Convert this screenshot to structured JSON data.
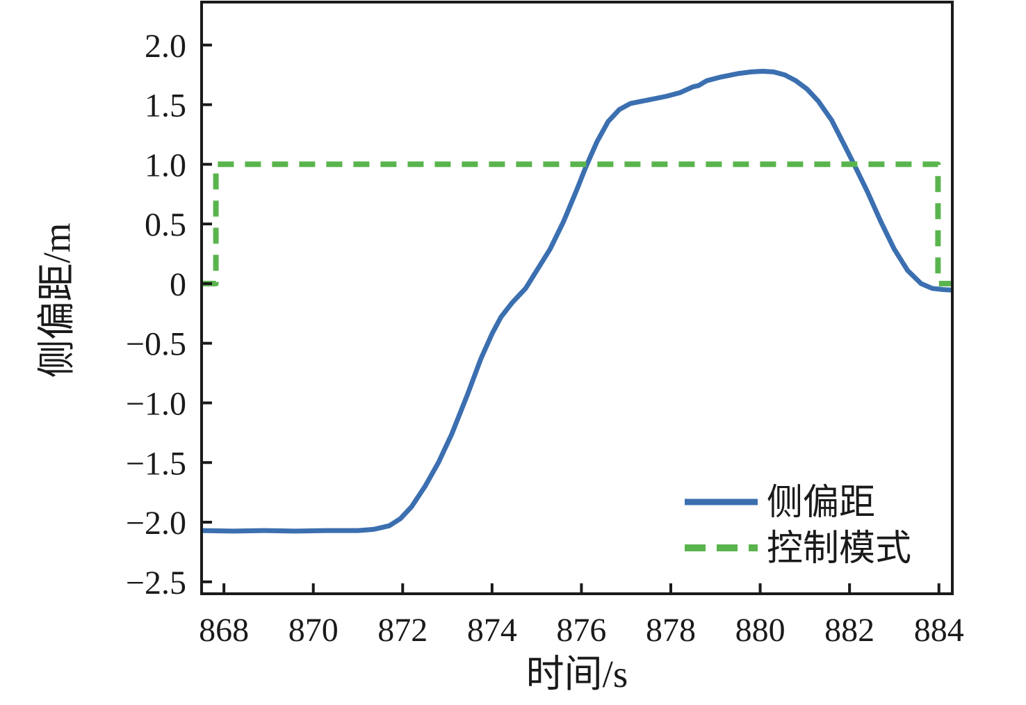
{
  "chart_data": {
    "type": "line",
    "title": "",
    "xlabel": "时间/s",
    "ylabel": "侧偏距/m",
    "xlim": [
      867.5,
      884.3
    ],
    "ylim": [
      -2.6,
      2.36
    ],
    "grid": false,
    "axis_color": "#1a1a1a",
    "xticks": [
      868,
      870,
      872,
      874,
      876,
      878,
      880,
      882,
      884
    ],
    "xtick_labels": [
      "868",
      "870",
      "872",
      "874",
      "876",
      "878",
      "880",
      "882",
      "884"
    ],
    "yticks": [
      2.0,
      1.5,
      1.0,
      0.5,
      0,
      -0.5,
      -1.0,
      -1.5,
      -2.0,
      -2.5
    ],
    "ytick_labels": [
      "2.0",
      "1.5",
      "1.0",
      "0.5",
      "0",
      "−0.5",
      "−1.0",
      "−1.5",
      "−2.0",
      "−2.5"
    ],
    "legend": {
      "position": "lower-right"
    },
    "series": [
      {
        "name": "侧偏距",
        "line_style": "solid",
        "color": "#3b6fb0",
        "stroke_width": 7,
        "points": [
          [
            867.5,
            -2.07
          ],
          [
            868.2,
            -2.075
          ],
          [
            868.9,
            -2.07
          ],
          [
            869.6,
            -2.075
          ],
          [
            870.3,
            -2.07
          ],
          [
            871.0,
            -2.07
          ],
          [
            871.35,
            -2.06
          ],
          [
            871.7,
            -2.03
          ],
          [
            871.95,
            -1.97
          ],
          [
            872.2,
            -1.87
          ],
          [
            872.5,
            -1.7
          ],
          [
            872.8,
            -1.5
          ],
          [
            873.1,
            -1.26
          ],
          [
            873.45,
            -0.93
          ],
          [
            873.75,
            -0.63
          ],
          [
            874.0,
            -0.42
          ],
          [
            874.2,
            -0.28
          ],
          [
            874.45,
            -0.16
          ],
          [
            874.75,
            -0.04
          ],
          [
            875.05,
            0.14
          ],
          [
            875.3,
            0.29
          ],
          [
            875.6,
            0.52
          ],
          [
            875.9,
            0.79
          ],
          [
            876.1,
            0.98
          ],
          [
            876.35,
            1.19
          ],
          [
            876.6,
            1.36
          ],
          [
            876.85,
            1.46
          ],
          [
            877.1,
            1.51
          ],
          [
            877.5,
            1.54
          ],
          [
            877.9,
            1.57
          ],
          [
            878.2,
            1.6
          ],
          [
            878.5,
            1.65
          ],
          [
            878.62,
            1.66
          ],
          [
            878.8,
            1.7
          ],
          [
            879.1,
            1.73
          ],
          [
            879.5,
            1.76
          ],
          [
            879.8,
            1.775
          ],
          [
            880.05,
            1.78
          ],
          [
            880.3,
            1.775
          ],
          [
            880.55,
            1.75
          ],
          [
            880.8,
            1.7
          ],
          [
            881.05,
            1.63
          ],
          [
            881.3,
            1.53
          ],
          [
            881.6,
            1.37
          ],
          [
            881.9,
            1.15
          ],
          [
            882.1,
            1.0
          ],
          [
            882.4,
            0.77
          ],
          [
            882.7,
            0.52
          ],
          [
            883.0,
            0.29
          ],
          [
            883.3,
            0.11
          ],
          [
            883.6,
            0.0
          ],
          [
            883.85,
            -0.04
          ],
          [
            884.1,
            -0.05
          ],
          [
            884.3,
            -0.055
          ]
        ]
      },
      {
        "name": "控制模式",
        "line_style": "dashed",
        "color": "#5ab44d",
        "stroke_width": 8,
        "points": [
          [
            867.5,
            0.0
          ],
          [
            867.82,
            0.0
          ],
          [
            867.82,
            1.0
          ],
          [
            883.98,
            1.0
          ],
          [
            883.98,
            0.0
          ],
          [
            884.3,
            0.0
          ]
        ]
      }
    ]
  }
}
